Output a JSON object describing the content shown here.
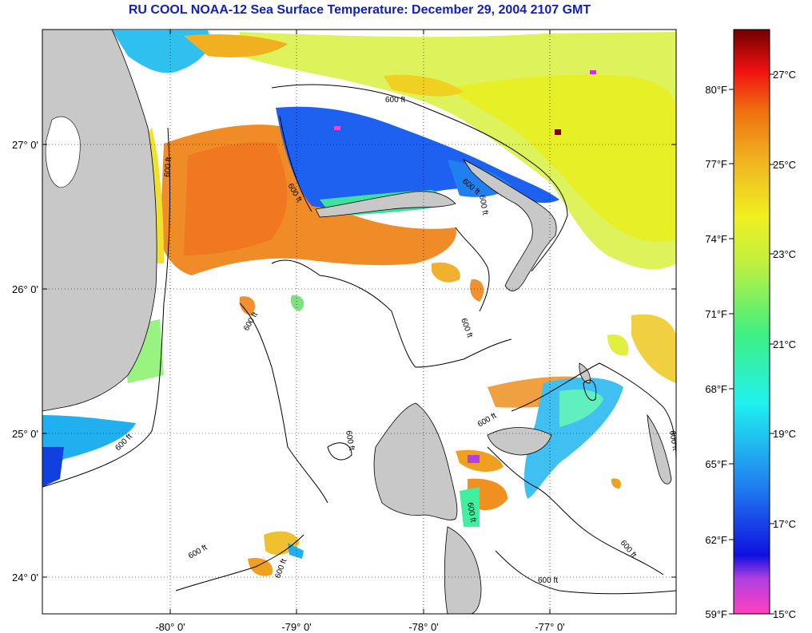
{
  "title": "RU COOL  NOAA-12  Sea Surface Temperature:  December 29, 2004 2107 GMT",
  "axes": {
    "x_ticks": [
      "-80° 0'",
      "-79° 0'",
      "-78° 0'",
      "-77° 0'"
    ],
    "y_ticks": [
      "27° 0'",
      "26° 0'",
      "25° 0'",
      "24° 0'"
    ]
  },
  "contour_label": "600 ft",
  "colorbar": {
    "fahrenheit": [
      "80°F",
      "77°F",
      "74°F",
      "71°F",
      "68°F",
      "65°F",
      "62°F",
      "59°F"
    ],
    "celsius": [
      "27°C",
      "25°C",
      "23°C",
      "21°C",
      "19°C",
      "17°C",
      "15°C"
    ]
  },
  "colors": {
    "land": "#c8c8c8",
    "title": "#1020c0",
    "warm": "#f07a1c",
    "cold": "#1a5af0",
    "mid": "#f0e632"
  }
}
